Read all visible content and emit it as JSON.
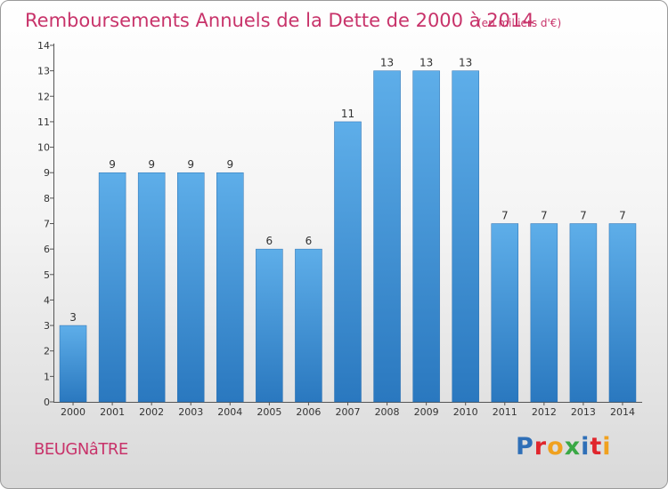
{
  "chart_data": {
    "type": "bar",
    "title": "Remboursements Annuels de la Dette de 2000 à 2014",
    "subtitle": "(en milliers d'€)",
    "categories": [
      "2000",
      "2001",
      "2002",
      "2003",
      "2004",
      "2005",
      "2006",
      "2007",
      "2008",
      "2009",
      "2010",
      "2011",
      "2012",
      "2013",
      "2014"
    ],
    "values": [
      3,
      9,
      9,
      9,
      9,
      6,
      6,
      11,
      13,
      13,
      13,
      7,
      7,
      7,
      7
    ],
    "data_labels": [
      "3",
      "9",
      "9",
      "9",
      "9",
      "6",
      "6",
      "11",
      "13",
      "13",
      "13",
      "7",
      "7",
      "7",
      "7"
    ],
    "yticks": [
      "0",
      "1",
      "2",
      "3",
      "4",
      "5",
      "6",
      "7",
      "8",
      "9",
      "10",
      "11",
      "12",
      "13",
      "14"
    ],
    "ylim": [
      0,
      14
    ],
    "bar_color": "#3c93d8",
    "grid": false
  },
  "footer": {
    "commune": "BEUGNâTRE",
    "logo_letters": [
      {
        "char": "P",
        "color": "#2f6fb7"
      },
      {
        "char": "r",
        "color": "#e0262d"
      },
      {
        "char": "o",
        "color": "#f0a11f"
      },
      {
        "char": "x",
        "color": "#3aa845"
      },
      {
        "char": "i",
        "color": "#2f6fb7"
      },
      {
        "char": "t",
        "color": "#e0262d"
      },
      {
        "char": "i",
        "color": "#f0a11f"
      }
    ]
  }
}
